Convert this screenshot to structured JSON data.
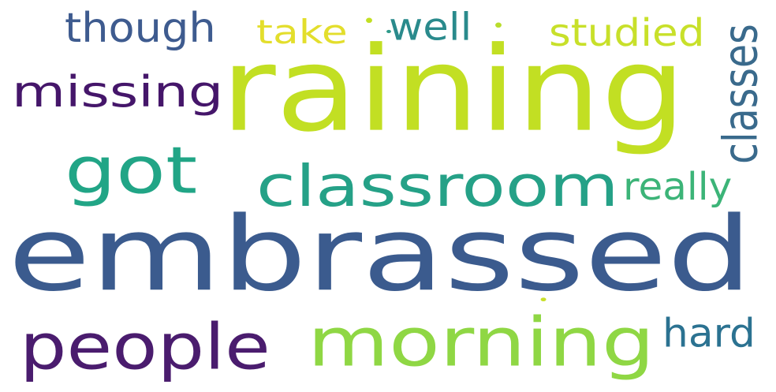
{
  "words": [
    {
      "text": "embrassed",
      "color": "#3b5b8e"
    },
    {
      "text": "raining",
      "color": "#c2df23"
    },
    {
      "text": "classroom",
      "color": "#25a187"
    },
    {
      "text": "morning",
      "color": "#8fd744"
    },
    {
      "text": "people",
      "color": "#4a1c6e"
    },
    {
      "text": "got",
      "color": "#21a586"
    },
    {
      "text": "missing",
      "color": "#45166a"
    },
    {
      "text": "though",
      "color": "#3e5b8f"
    },
    {
      "text": "take",
      "color": "#e3de2c"
    },
    {
      "text": "well",
      "color": "#2a8a8c"
    },
    {
      "text": "studied",
      "color": "#c8e02a"
    },
    {
      "text": "classes",
      "color": "#3a6a8c"
    },
    {
      "text": "really",
      "color": "#3cb478"
    },
    {
      "text": "hard",
      "color": "#2b7291"
    },
    {
      "text": "•",
      "color": "#c2df23"
    },
    {
      "text": "•",
      "color": "#b9dd2c"
    },
    {
      "text": "•",
      "color": "#2f9a8a"
    },
    {
      "text": "•",
      "color": "#c9e02a"
    }
  ]
}
